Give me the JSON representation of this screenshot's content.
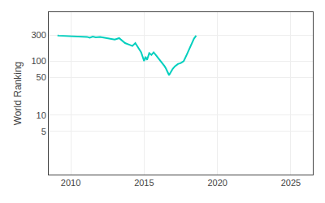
{
  "chart_data": {
    "type": "line",
    "ylabel": "World Ranking",
    "x": [
      2009.1,
      2009.15,
      2011.1,
      2011.3,
      2011.5,
      2011.7,
      2012.0,
      2012.3,
      2013.0,
      2013.3,
      2013.5,
      2013.7,
      2014.0,
      2014.2,
      2014.4,
      2014.6,
      2014.8,
      2015.0,
      2015.1,
      2015.2,
      2015.35,
      2015.5,
      2015.65,
      2015.75,
      2015.85,
      2015.95,
      2016.05,
      2016.15,
      2016.25,
      2016.4,
      2016.5,
      2016.6,
      2016.7,
      2016.75,
      2016.85,
      2016.95,
      2017.1,
      2017.3,
      2017.5,
      2017.7,
      2017.9,
      2018.1,
      2018.4,
      2018.55
    ],
    "values": [
      300,
      295,
      280,
      270,
      283,
      275,
      278,
      270,
      250,
      265,
      235,
      215,
      200,
      190,
      215,
      175,
      145,
      100,
      120,
      105,
      140,
      130,
      145,
      135,
      125,
      115,
      105,
      100,
      90,
      80,
      72,
      63,
      55,
      58,
      65,
      72,
      80,
      88,
      92,
      100,
      130,
      175,
      260,
      295
    ],
    "color": "#00cfbe",
    "log": "y",
    "xlim": [
      2008.5,
      2026.5
    ],
    "ylim": [
      0.8,
      800
    ],
    "xticks": [
      2010,
      2015,
      2020,
      2025
    ],
    "yticks": [
      5,
      10,
      50,
      100,
      300
    ],
    "grid": true
  }
}
